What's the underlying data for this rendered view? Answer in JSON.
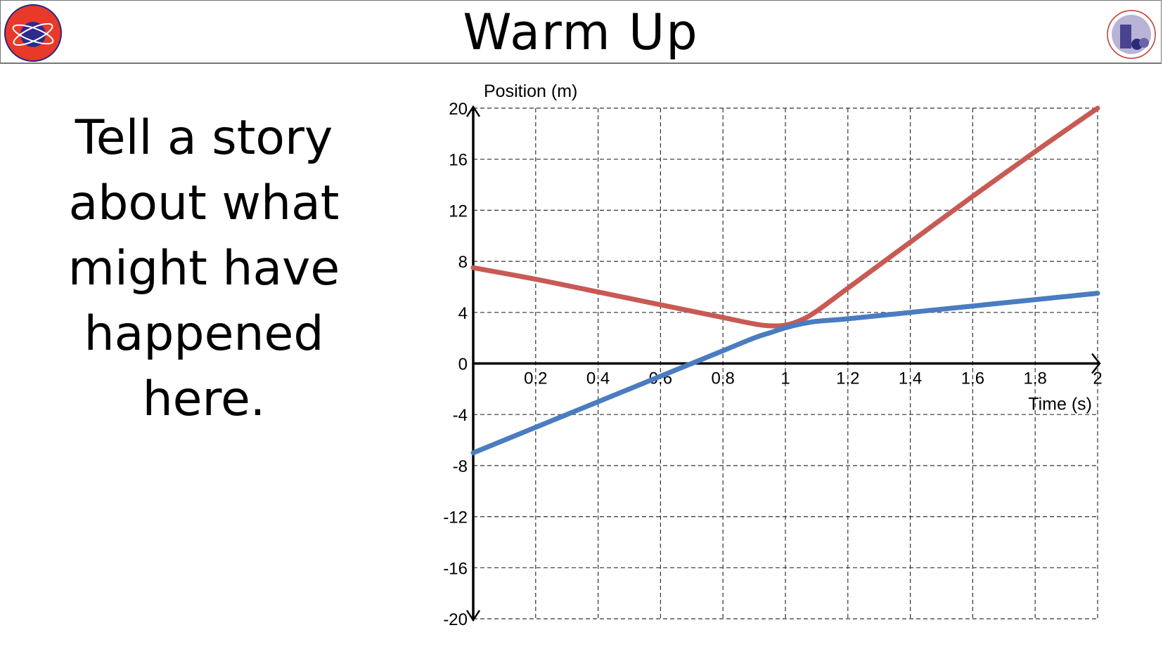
{
  "header": {
    "title": "Warm Up",
    "left_logo": "SHS SCIENCE",
    "right_logo": "Somerville Public Schools · Education · Inspiration · Excellence"
  },
  "prompt": {
    "lines": [
      "Tell a story",
      "about what",
      "might have",
      "happened",
      "here."
    ]
  },
  "chart_data": {
    "type": "line",
    "xlabel": "Time (s)",
    "ylabel": "Position (m)",
    "xlim": [
      0,
      2
    ],
    "ylim": [
      -20,
      20
    ],
    "xticks": [
      "0.2",
      "0.4",
      "0.6",
      "0.8",
      "1",
      "1.2",
      "1.4",
      "1.6",
      "1.8",
      "2"
    ],
    "yticks": [
      "20",
      "16",
      "12",
      "8",
      "4",
      "0",
      "-4",
      "-8",
      "-12",
      "-16",
      "-20"
    ],
    "grid": true,
    "series": [
      {
        "color": "#c85a54",
        "x": [
          0,
          0.2,
          0.4,
          0.6,
          0.8,
          0.9,
          0.95,
          1.0,
          1.05,
          1.1,
          1.2,
          1.4,
          1.6,
          1.8,
          2
        ],
        "y": [
          7.5,
          6.6,
          5.6,
          4.6,
          3.6,
          3.1,
          2.95,
          3.0,
          3.4,
          4.1,
          5.9,
          9.5,
          13.1,
          16.6,
          20
        ]
      },
      {
        "color": "#4a7cc0",
        "x": [
          0,
          0.2,
          0.4,
          0.6,
          0.8,
          0.9,
          0.95,
          1.0,
          1.05,
          1.1,
          1.2,
          1.4,
          1.6,
          1.8,
          2
        ],
        "y": [
          -7,
          -5,
          -3,
          -1,
          1,
          2,
          2.4,
          2.8,
          3.1,
          3.3,
          3.5,
          4,
          4.5,
          5,
          5.5
        ]
      }
    ]
  }
}
